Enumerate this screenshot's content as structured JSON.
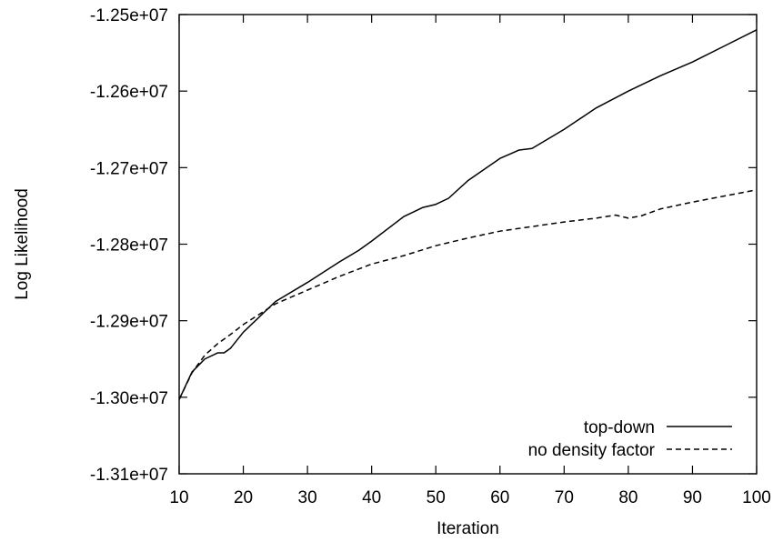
{
  "chart_data": {
    "type": "line",
    "title": "",
    "xlabel": "Iteration",
    "ylabel": "Log Likelihood",
    "xlim": [
      10,
      100
    ],
    "ylim": [
      -13100000,
      -12500000
    ],
    "xticks": [
      10,
      20,
      30,
      40,
      50,
      60,
      70,
      80,
      90,
      100
    ],
    "yticks": [
      -13100000,
      -13000000,
      -12900000,
      -12800000,
      -12700000,
      -12600000,
      -12500000
    ],
    "ytick_labels": [
      "-1.31e+07",
      "-1.30e+07",
      "-1.29e+07",
      "-1.28e+07",
      "-1.27e+07",
      "-1.26e+07",
      "-1.25e+07"
    ],
    "grid": false,
    "legend_position": "bottom-right",
    "series": [
      {
        "name": "top-down",
        "style": "solid",
        "x": [
          10,
          12,
          14,
          16,
          17,
          18,
          20,
          25,
          30,
          35,
          38,
          40,
          45,
          48,
          50,
          52,
          55,
          60,
          63,
          65,
          70,
          75,
          80,
          85,
          90,
          95,
          100
        ],
        "y": [
          -13003000,
          -12967000,
          -12950000,
          -12942000,
          -12942000,
          -12936000,
          -12915000,
          -12875000,
          -12850000,
          -12823000,
          -12808000,
          -12796000,
          -12764000,
          -12752000,
          -12748000,
          -12740000,
          -12717000,
          -12688000,
          -12677000,
          -12675000,
          -12650000,
          -12622000,
          -12600000,
          -12580000,
          -12562000,
          -12541000,
          -12520000
        ]
      },
      {
        "name": "no density factor",
        "style": "dashed",
        "x": [
          10,
          12,
          14,
          16,
          18,
          20,
          25,
          30,
          35,
          40,
          45,
          50,
          55,
          60,
          65,
          70,
          75,
          78,
          80,
          82,
          85,
          90,
          95,
          100
        ],
        "y": [
          -13003000,
          -12968000,
          -12945000,
          -12930000,
          -12918000,
          -12905000,
          -12878000,
          -12860000,
          -12842000,
          -12826000,
          -12815000,
          -12802000,
          -12792000,
          -12783000,
          -12777000,
          -12771000,
          -12766000,
          -12762000,
          -12766000,
          -12763000,
          -12754000,
          -12745000,
          -12737000,
          -12729000
        ]
      }
    ]
  }
}
